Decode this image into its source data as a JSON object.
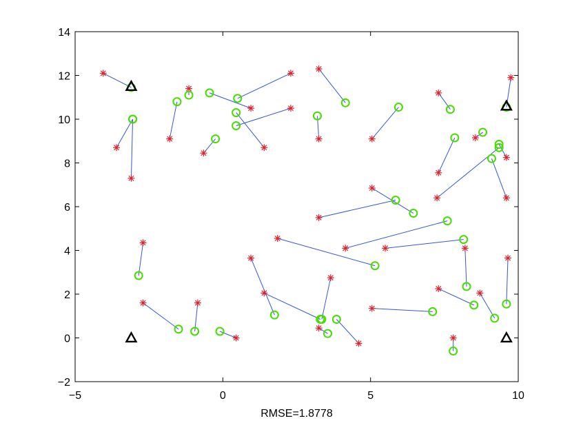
{
  "chart_data": {
    "type": "scatter",
    "title": "",
    "xlabel": "RMSE=1.8778",
    "ylabel": "",
    "xlim": [
      -5,
      10
    ],
    "ylim": [
      -2,
      14
    ],
    "xticks": [
      -5,
      0,
      5,
      10
    ],
    "yticks": [
      -2,
      0,
      2,
      4,
      6,
      8,
      10,
      12,
      14
    ],
    "xtick_labels": [
      "−5",
      "0",
      "5",
      "10"
    ],
    "ytick_labels": [
      "−2",
      "0",
      "2",
      "4",
      "6",
      "8",
      "10",
      "12",
      "14"
    ],
    "grid": false,
    "legend": null,
    "colors": {
      "line": "#3355dd",
      "star": "#e0202a",
      "circle": "#44dd00",
      "anchor": "#000000"
    },
    "anchors": [
      {
        "x": -3.1,
        "y": 11.5
      },
      {
        "x": 9.6,
        "y": 10.6
      },
      {
        "x": -3.1,
        "y": 0.0
      },
      {
        "x": 9.6,
        "y": 0.0
      }
    ],
    "pairs": [
      {
        "true": [
          -4.05,
          12.1
        ],
        "est": [
          -3.1,
          11.45
        ]
      },
      {
        "true": [
          -3.6,
          8.7
        ],
        "est": [
          -3.05,
          10.0
        ]
      },
      {
        "true": [
          -3.1,
          7.3
        ],
        "est": [
          -3.05,
          10.0
        ]
      },
      {
        "true": [
          -1.8,
          9.1
        ],
        "est": [
          -1.55,
          10.8
        ]
      },
      {
        "true": [
          -1.15,
          11.4
        ],
        "est": [
          -1.15,
          11.1
        ]
      },
      {
        "true": [
          -0.65,
          8.45
        ],
        "est": [
          -0.25,
          9.1
        ]
      },
      {
        "true": [
          0.95,
          10.5
        ],
        "est": [
          -0.45,
          11.2
        ]
      },
      {
        "true": [
          2.3,
          12.1
        ],
        "est": [
          0.5,
          10.95
        ]
      },
      {
        "true": [
          1.4,
          8.7
        ],
        "est": [
          0.45,
          10.3
        ]
      },
      {
        "true": [
          2.3,
          10.5
        ],
        "est": [
          0.45,
          9.7
        ]
      },
      {
        "true": [
          3.25,
          12.3
        ],
        "est": [
          4.15,
          10.75
        ]
      },
      {
        "true": [
          3.25,
          9.1
        ],
        "est": [
          3.2,
          10.15
        ]
      },
      {
        "true": [
          5.05,
          9.1
        ],
        "est": [
          5.95,
          10.55
        ]
      },
      {
        "true": [
          7.3,
          11.2
        ],
        "est": [
          7.7,
          10.45
        ]
      },
      {
        "true": [
          9.75,
          11.9
        ],
        "est": [
          9.6,
          10.55
        ]
      },
      {
        "true": [
          7.3,
          7.55
        ],
        "est": [
          7.85,
          9.15
        ]
      },
      {
        "true": [
          8.55,
          9.15
        ],
        "est": [
          8.8,
          9.4
        ]
      },
      {
        "true": [
          7.25,
          6.4
        ],
        "est": [
          9.35,
          8.7
        ]
      },
      {
        "true": [
          9.6,
          8.25
        ],
        "est": [
          9.35,
          8.85
        ]
      },
      {
        "true": [
          9.6,
          6.4
        ],
        "est": [
          9.1,
          8.2
        ]
      },
      {
        "true": [
          5.05,
          6.85
        ],
        "est": [
          6.45,
          5.7
        ]
      },
      {
        "true": [
          3.25,
          5.5
        ],
        "est": [
          5.85,
          6.3
        ]
      },
      {
        "true": [
          4.15,
          4.1
        ],
        "est": [
          7.6,
          5.35
        ]
      },
      {
        "true": [
          5.5,
          4.1
        ],
        "est": [
          8.15,
          4.5
        ]
      },
      {
        "true": [
          1.85,
          4.55
        ],
        "est": [
          5.15,
          3.3
        ]
      },
      {
        "true": [
          8.2,
          4.1
        ],
        "est": [
          8.25,
          2.35
        ]
      },
      {
        "true": [
          7.3,
          2.25
        ],
        "est": [
          8.5,
          1.5
        ]
      },
      {
        "true": [
          8.7,
          2.05
        ],
        "est": [
          9.2,
          0.9
        ]
      },
      {
        "true": [
          9.65,
          3.65
        ],
        "est": [
          9.6,
          1.55
        ]
      },
      {
        "true": [
          5.05,
          1.35
        ],
        "est": [
          7.1,
          1.2
        ]
      },
      {
        "true": [
          7.8,
          0.0
        ],
        "est": [
          7.8,
          -0.6
        ]
      },
      {
        "true": [
          -2.7,
          4.35
        ],
        "est": [
          -2.85,
          2.85
        ]
      },
      {
        "true": [
          -2.7,
          1.6
        ],
        "est": [
          -1.5,
          0.4
        ]
      },
      {
        "true": [
          -0.85,
          1.6
        ],
        "est": [
          -0.95,
          0.3
        ]
      },
      {
        "true": [
          0.45,
          0.0
        ],
        "est": [
          -0.1,
          0.3
        ]
      },
      {
        "true": [
          0.95,
          3.65
        ],
        "est": [
          1.75,
          1.05
        ]
      },
      {
        "true": [
          1.4,
          2.05
        ],
        "est": [
          3.3,
          0.85
        ]
      },
      {
        "true": [
          3.65,
          2.75
        ],
        "est": [
          3.35,
          0.85
        ]
      },
      {
        "true": [
          3.25,
          0.45
        ],
        "est": [
          3.55,
          0.2
        ]
      },
      {
        "true": [
          4.6,
          -0.25
        ],
        "est": [
          3.85,
          0.85
        ]
      }
    ]
  }
}
